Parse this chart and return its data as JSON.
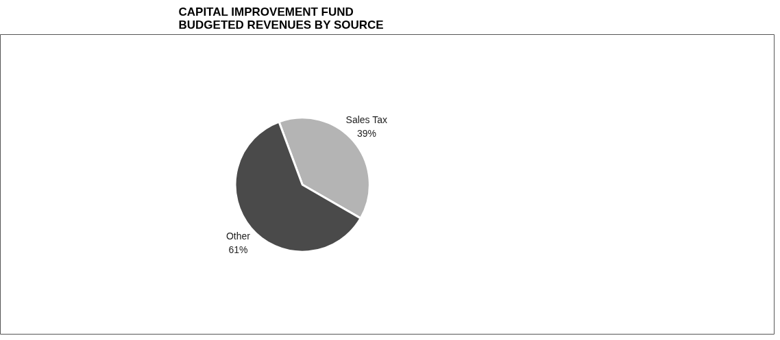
{
  "chart_data": {
    "type": "pie",
    "title": "CAPITAL IMPROVEMENT FUND\nBUDGETED REVENUES BY SOURCE",
    "categories": [
      "Sales Tax",
      "Other"
    ],
    "values": [
      39,
      61
    ],
    "value_labels": [
      "39%",
      "61%"
    ],
    "colors": [
      "#b4b4b4",
      "#4a4a4a"
    ]
  }
}
